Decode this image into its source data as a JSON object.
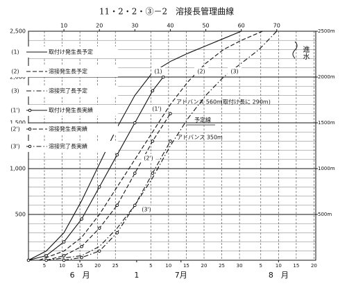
{
  "chart_data": {
    "type": "line",
    "title": "11・2・2・③－2　溶接長管理曲線",
    "xlim": [
      0,
      81
    ],
    "ylim": [
      0,
      2500
    ],
    "y2lim": [
      0,
      2500
    ],
    "xticks": [
      10,
      20,
      30,
      40,
      50,
      60,
      70
    ],
    "xticks_bottom": [
      {
        "value": 4.5,
        "label": "5"
      },
      {
        "value": 9.5,
        "label": "10"
      },
      {
        "value": 14.5,
        "label": "15"
      },
      {
        "value": 19.5,
        "label": "20"
      },
      {
        "value": 24.5,
        "label": "25"
      },
      {
        "value": 34.5,
        "label": "5"
      },
      {
        "value": 39.5,
        "label": "10"
      },
      {
        "value": 44.5,
        "label": "15"
      },
      {
        "value": 49.5,
        "label": "20"
      },
      {
        "value": 54.5,
        "label": "25"
      },
      {
        "value": 59.5,
        "label": "30"
      },
      {
        "value": 65.5,
        "label": "5"
      },
      {
        "value": 70.5,
        "label": "10"
      },
      {
        "value": 75.5,
        "label": "15"
      },
      {
        "value": 80.5,
        "label": "20"
      }
    ],
    "month_ticks": [
      {
        "value": 14.5,
        "label": "6　月"
      },
      {
        "value": 30.5,
        "label": "1"
      },
      {
        "value": 43,
        "label": "7月"
      },
      {
        "value": 70.5,
        "label": "8　月"
      }
    ],
    "yticks": [
      500,
      {
        "value": 1000,
        "label": "1,000"
      },
      {
        "value": 1500,
        "label": "1,500"
      },
      {
        "value": 2000,
        "label": "2,000"
      },
      {
        "value": 2500,
        "label": "2,500"
      }
    ],
    "y2ticks": [
      {
        "value": 500,
        "label": "500m"
      },
      {
        "value": 1000,
        "label": "1000m"
      },
      {
        "value": 1500,
        "label": "1500m"
      },
      {
        "value": 2000,
        "label": "2000m"
      },
      {
        "value": 2500,
        "label": "2500m"
      }
    ],
    "grid": true,
    "ygrid_minor": 100,
    "series": [
      {
        "key": "(1)",
        "name": "取付け発生長予定",
        "color": "#111",
        "style": "solid",
        "marker": false,
        "x": [
          0,
          5,
          10,
          15,
          20,
          25,
          30,
          35,
          40,
          45,
          50,
          55,
          60
        ],
        "values": [
          0,
          100,
          300,
          650,
          1050,
          1450,
          1800,
          2050,
          2170,
          2260,
          2340,
          2420,
          2500
        ]
      },
      {
        "key": "(2)",
        "name": "溶接発生長予定",
        "color": "#111",
        "style": "dashed",
        "marker": false,
        "x": [
          3,
          10,
          15,
          20,
          25,
          30,
          35,
          40,
          45,
          50,
          55,
          60,
          66
        ],
        "values": [
          0,
          100,
          250,
          500,
          800,
          1100,
          1400,
          1700,
          1950,
          2150,
          2300,
          2400,
          2500
        ]
      },
      {
        "key": "(3)",
        "name": "溶接完了長予定",
        "color": "#111",
        "style": "dashdot",
        "marker": false,
        "x": [
          5,
          15,
          20,
          25,
          30,
          35,
          40,
          45,
          50,
          55,
          60,
          65,
          70
        ],
        "values": [
          0,
          50,
          150,
          350,
          600,
          900,
          1250,
          1550,
          1800,
          2000,
          2150,
          2300,
          2500
        ]
      },
      {
        "key": "(1')",
        "name": "取付け発生長実績",
        "color": "#111",
        "style": "solid",
        "marker": true,
        "x": [
          0,
          5,
          10,
          15,
          20,
          25,
          30,
          35,
          38
        ],
        "values": [
          0,
          50,
          200,
          450,
          800,
          1150,
          1500,
          1850,
          2000
        ]
      },
      {
        "key": "(2')",
        "name": "溶接発生長実績",
        "color": "#111",
        "style": "dashed",
        "marker": true,
        "x": [
          5,
          10,
          15,
          20,
          25,
          30,
          35,
          40
        ],
        "values": [
          0,
          50,
          150,
          350,
          600,
          950,
          1300,
          1600
        ]
      },
      {
        "key": "(3')",
        "name": "溶接完了長実績",
        "color": "#111",
        "style": "dashdot",
        "marker": true,
        "x": [
          10,
          15,
          20,
          25,
          30,
          35,
          40
        ],
        "values": [
          0,
          30,
          100,
          300,
          600,
          950,
          1300
        ]
      }
    ],
    "annotations": [
      "アドバンス 560m",
      "(取付け長に 290m)",
      "予定線",
      "アドバンス 350m",
      "進水"
    ]
  }
}
